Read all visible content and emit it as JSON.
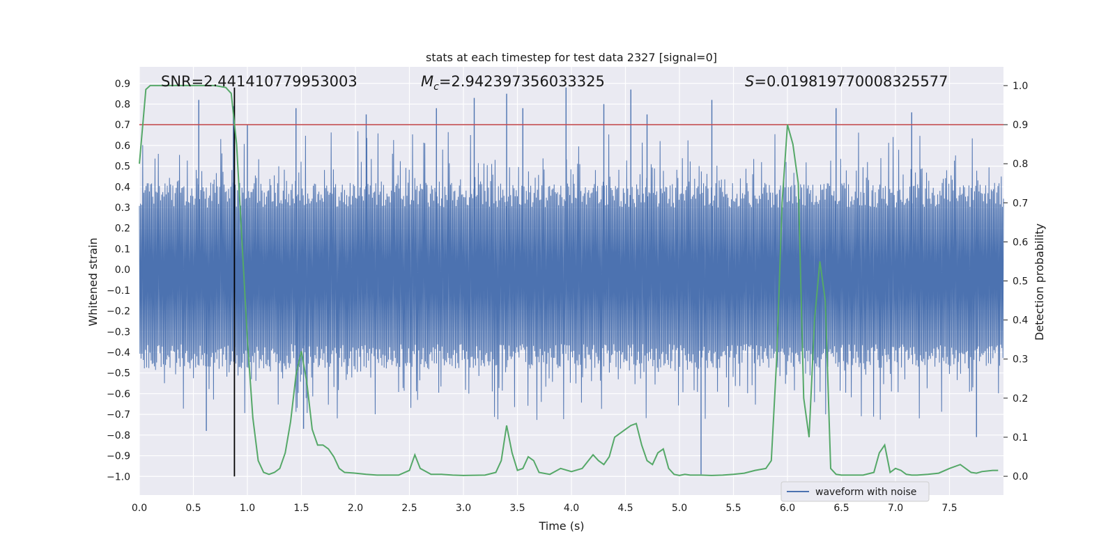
{
  "chart_data": {
    "type": "line",
    "title": "stats at each timestep for test data 2327 [signal=0]",
    "xlabel": "Time (s)",
    "ylabel": "Whitened strain",
    "y2label": "Detection probability",
    "xlim": [
      0.0,
      8.0
    ],
    "ylim": [
      -1.09,
      0.98
    ],
    "y2lim": [
      -0.048,
      1.048
    ],
    "x_ticks": [
      0.0,
      0.5,
      1.0,
      1.5,
      2.0,
      2.5,
      3.0,
      3.5,
      4.0,
      4.5,
      5.0,
      5.5,
      6.0,
      6.5,
      7.0,
      7.5
    ],
    "x_tick_labels": [
      "0.0",
      "0.5",
      "1.0",
      "1.5",
      "2.0",
      "2.5",
      "3.0",
      "3.5",
      "4.0",
      "4.5",
      "5.0",
      "5.5",
      "6.0",
      "6.5",
      "7.0",
      "7.5"
    ],
    "y_ticks": [
      0.9,
      0.8,
      0.7,
      0.6,
      0.5,
      0.4,
      0.3,
      0.2,
      0.1,
      0.0,
      -0.1,
      -0.2,
      -0.3,
      -0.4,
      -0.5,
      -0.6,
      -0.7,
      -0.8,
      -0.9,
      -1.0
    ],
    "y_tick_labels": [
      "0.9",
      "0.8",
      "0.7",
      "0.6",
      "0.5",
      "0.4",
      "0.3",
      "0.2",
      "0.1",
      "0.0",
      "−0.1",
      "−0.2",
      "−0.3",
      "−0.4",
      "−0.5",
      "−0.6",
      "−0.7",
      "−0.8",
      "−0.9",
      "−1.0"
    ],
    "y2_ticks": [
      1.0,
      0.9,
      0.8,
      0.7,
      0.6,
      0.5,
      0.4,
      0.3,
      0.2,
      0.1,
      0.0
    ],
    "y2_tick_labels": [
      "1.0",
      "0.9",
      "0.8",
      "0.7",
      "0.6",
      "0.5",
      "0.4",
      "0.3",
      "0.2",
      "0.1",
      "0.0"
    ],
    "grid": true,
    "legend_position": "bottom-right",
    "annotations": {
      "snr": "SNR=2.441410779953003",
      "mc_symbol": "M",
      "mc_sub": "c",
      "mc_value": "=2.942397356033325",
      "s_symbol": "S",
      "s_value": "=0.019819770008325577"
    },
    "series": [
      {
        "name": "waveform with noise",
        "axis": "left",
        "kind": "noise-band",
        "color": "#4c72b0",
        "x_range": [
          0.0,
          8.0
        ],
        "typical_range": [
          -0.42,
          0.36
        ],
        "max_peak": 0.88,
        "min_peak": -0.99,
        "peaks_x": [
          0.55,
          0.62,
          0.87,
          1.0,
          1.45,
          1.52,
          2.1,
          2.75,
          3.1,
          3.4,
          3.55,
          3.95,
          4.3,
          4.55,
          4.7,
          5.2,
          5.3,
          6.45,
          7.15,
          7.75
        ],
        "peaks_y": [
          0.82,
          -0.78,
          0.79,
          0.7,
          0.78,
          -0.77,
          0.75,
          0.78,
          0.83,
          0.85,
          0.78,
          0.88,
          0.8,
          0.87,
          0.75,
          -0.99,
          0.82,
          0.78,
          0.76,
          -0.81
        ]
      },
      {
        "name": "",
        "axis": "right",
        "kind": "line",
        "color": "#55a868",
        "x": [
          0.0,
          0.06,
          0.1,
          0.2,
          0.4,
          0.6,
          0.7,
          0.8,
          0.85,
          0.9,
          0.95,
          1.0,
          1.05,
          1.1,
          1.15,
          1.2,
          1.25,
          1.3,
          1.35,
          1.4,
          1.45,
          1.5,
          1.55,
          1.6,
          1.65,
          1.7,
          1.75,
          1.8,
          1.85,
          1.9,
          2.0,
          2.1,
          2.2,
          2.4,
          2.5,
          2.55,
          2.6,
          2.7,
          2.8,
          2.9,
          3.0,
          3.2,
          3.3,
          3.35,
          3.4,
          3.45,
          3.5,
          3.55,
          3.6,
          3.65,
          3.7,
          3.8,
          3.9,
          4.0,
          4.1,
          4.2,
          4.25,
          4.3,
          4.35,
          4.4,
          4.45,
          4.5,
          4.55,
          4.6,
          4.65,
          4.7,
          4.75,
          4.8,
          4.85,
          4.9,
          4.95,
          5.0,
          5.05,
          5.1,
          5.2,
          5.3,
          5.4,
          5.5,
          5.6,
          5.7,
          5.8,
          5.85,
          5.9,
          5.95,
          6.0,
          6.05,
          6.1,
          6.15,
          6.2,
          6.25,
          6.3,
          6.35,
          6.4,
          6.45,
          6.5,
          6.6,
          6.7,
          6.8,
          6.85,
          6.9,
          6.95,
          7.0,
          7.05,
          7.1,
          7.15,
          7.2,
          7.3,
          7.4,
          7.5,
          7.6,
          7.7,
          7.75,
          7.8,
          7.9,
          7.95
        ],
        "y": [
          0.8,
          0.99,
          1.0,
          1.0,
          1.0,
          1.0,
          1.0,
          0.995,
          0.98,
          0.85,
          0.6,
          0.35,
          0.15,
          0.04,
          0.01,
          0.005,
          0.01,
          0.02,
          0.06,
          0.14,
          0.26,
          0.32,
          0.24,
          0.12,
          0.08,
          0.08,
          0.07,
          0.05,
          0.02,
          0.01,
          0.008,
          0.005,
          0.003,
          0.003,
          0.015,
          0.055,
          0.02,
          0.005,
          0.005,
          0.003,
          0.002,
          0.003,
          0.01,
          0.04,
          0.13,
          0.06,
          0.015,
          0.02,
          0.05,
          0.04,
          0.01,
          0.005,
          0.02,
          0.012,
          0.02,
          0.055,
          0.04,
          0.03,
          0.05,
          0.1,
          0.11,
          0.12,
          0.13,
          0.135,
          0.08,
          0.04,
          0.03,
          0.06,
          0.07,
          0.02,
          0.005,
          0.002,
          0.005,
          0.003,
          0.003,
          0.002,
          0.003,
          0.005,
          0.008,
          0.015,
          0.02,
          0.04,
          0.3,
          0.7,
          0.9,
          0.85,
          0.75,
          0.2,
          0.1,
          0.4,
          0.55,
          0.45,
          0.02,
          0.005,
          0.003,
          0.003,
          0.003,
          0.01,
          0.06,
          0.08,
          0.01,
          0.02,
          0.015,
          0.005,
          0.003,
          0.003,
          0.005,
          0.008,
          0.02,
          0.03,
          0.01,
          0.008,
          0.012,
          0.015,
          0.015
        ]
      }
    ],
    "threshold": {
      "axis": "right",
      "value": 0.9,
      "color": "#c44e52"
    },
    "marker": {
      "x": 0.88,
      "color": "#000000"
    }
  }
}
